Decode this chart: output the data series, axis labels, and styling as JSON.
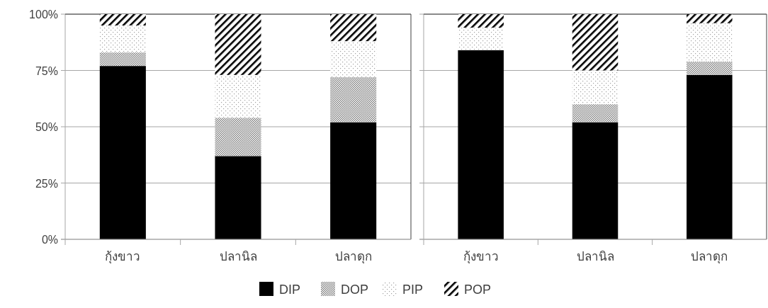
{
  "chart_data": [
    {
      "type": "bar",
      "stacked": true,
      "categories": [
        "กุ้งขาว",
        "ปลานิล",
        "ปลาดุก"
      ],
      "series": [
        {
          "name": "DIP",
          "color": "#000000",
          "values": [
            77,
            37,
            52
          ]
        },
        {
          "name": "DOP",
          "color": "#7f7f7f",
          "values": [
            6,
            17,
            20
          ]
        },
        {
          "name": "PIP",
          "color": "#a0a0a0",
          "values": [
            12,
            19,
            16
          ]
        },
        {
          "name": "POP",
          "color": "#000000",
          "values": [
            5,
            27,
            12
          ]
        }
      ],
      "ylim": [
        0,
        100
      ],
      "yticks": [
        {
          "value": 0,
          "label": "0%"
        },
        {
          "value": 25,
          "label": "25%"
        },
        {
          "value": 50,
          "label": "50%"
        },
        {
          "value": 75,
          "label": "75%"
        },
        {
          "value": 100,
          "label": "100%"
        }
      ],
      "grid": "y",
      "legend": "bottom"
    },
    {
      "type": "bar",
      "stacked": true,
      "categories": [
        "กุ้งขาว",
        "ปลานิล",
        "ปลาดุก"
      ],
      "series": [
        {
          "name": "DIP",
          "color": "#000000",
          "values": [
            84,
            52,
            73
          ]
        },
        {
          "name": "DOP",
          "color": "#7f7f7f",
          "values": [
            0,
            8,
            6
          ]
        },
        {
          "name": "PIP",
          "color": "#a0a0a0",
          "values": [
            10,
            15,
            17
          ]
        },
        {
          "name": "POP",
          "color": "#000000",
          "values": [
            6,
            25,
            4
          ]
        }
      ],
      "ylim": [
        0,
        100
      ],
      "yticks": [
        0,
        25,
        50,
        75,
        100
      ],
      "grid": "y",
      "tick_labels": "x",
      "legend": "bottom"
    }
  ]
}
